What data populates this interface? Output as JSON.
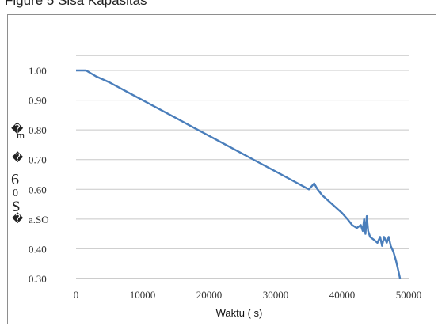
{
  "header": {
    "text": "Figure 5 Sisa Kapasitas"
  },
  "chart_data": {
    "type": "line",
    "title": "",
    "xlabel": "Waktu ( s)",
    "ylabel_glyphs": [
      "�",
      "m",
      "�",
      "6",
      "0",
      "S",
      "�"
    ],
    "xlim": [
      0,
      50000
    ],
    "ylim": [
      0.3,
      1.05
    ],
    "x_ticks": [
      0,
      10000,
      20000,
      30000,
      40000,
      50000
    ],
    "x_tick_labels": [
      "0",
      "10000",
      "20000",
      "30000",
      "40000",
      "50000"
    ],
    "y_ticks": [
      1.0,
      0.9,
      0.8,
      0.7,
      0.6,
      0.5,
      0.4,
      0.3
    ],
    "y_tick_labels": [
      "1.00",
      "0.90",
      "0.80",
      "0.70",
      "0.60",
      "a.SO",
      "0.40",
      "0.30"
    ],
    "grid": "horizontal",
    "line_color": "#4a7ebb",
    "series": [
      {
        "x": [
          0,
          1500,
          3000,
          5000,
          7500,
          10000,
          12500,
          15000,
          17500,
          20000,
          22500,
          25000,
          27500,
          30000,
          32500,
          35000,
          35800,
          36300,
          37000,
          38000,
          39000,
          40000,
          40800,
          41500,
          42200,
          42800,
          43100,
          43300,
          43500,
          43700,
          43900,
          44200,
          44800,
          45300,
          45700,
          46000,
          46300,
          46700,
          47000,
          47300,
          47700,
          48100,
          48400,
          48700
        ],
        "y": [
          1.0,
          1.0,
          0.98,
          0.96,
          0.93,
          0.9,
          0.87,
          0.84,
          0.81,
          0.78,
          0.75,
          0.72,
          0.69,
          0.66,
          0.63,
          0.6,
          0.62,
          0.6,
          0.58,
          0.56,
          0.54,
          0.52,
          0.5,
          0.48,
          0.47,
          0.48,
          0.46,
          0.5,
          0.45,
          0.51,
          0.46,
          0.44,
          0.43,
          0.42,
          0.44,
          0.41,
          0.44,
          0.42,
          0.44,
          0.41,
          0.39,
          0.36,
          0.33,
          0.3
        ]
      }
    ]
  }
}
